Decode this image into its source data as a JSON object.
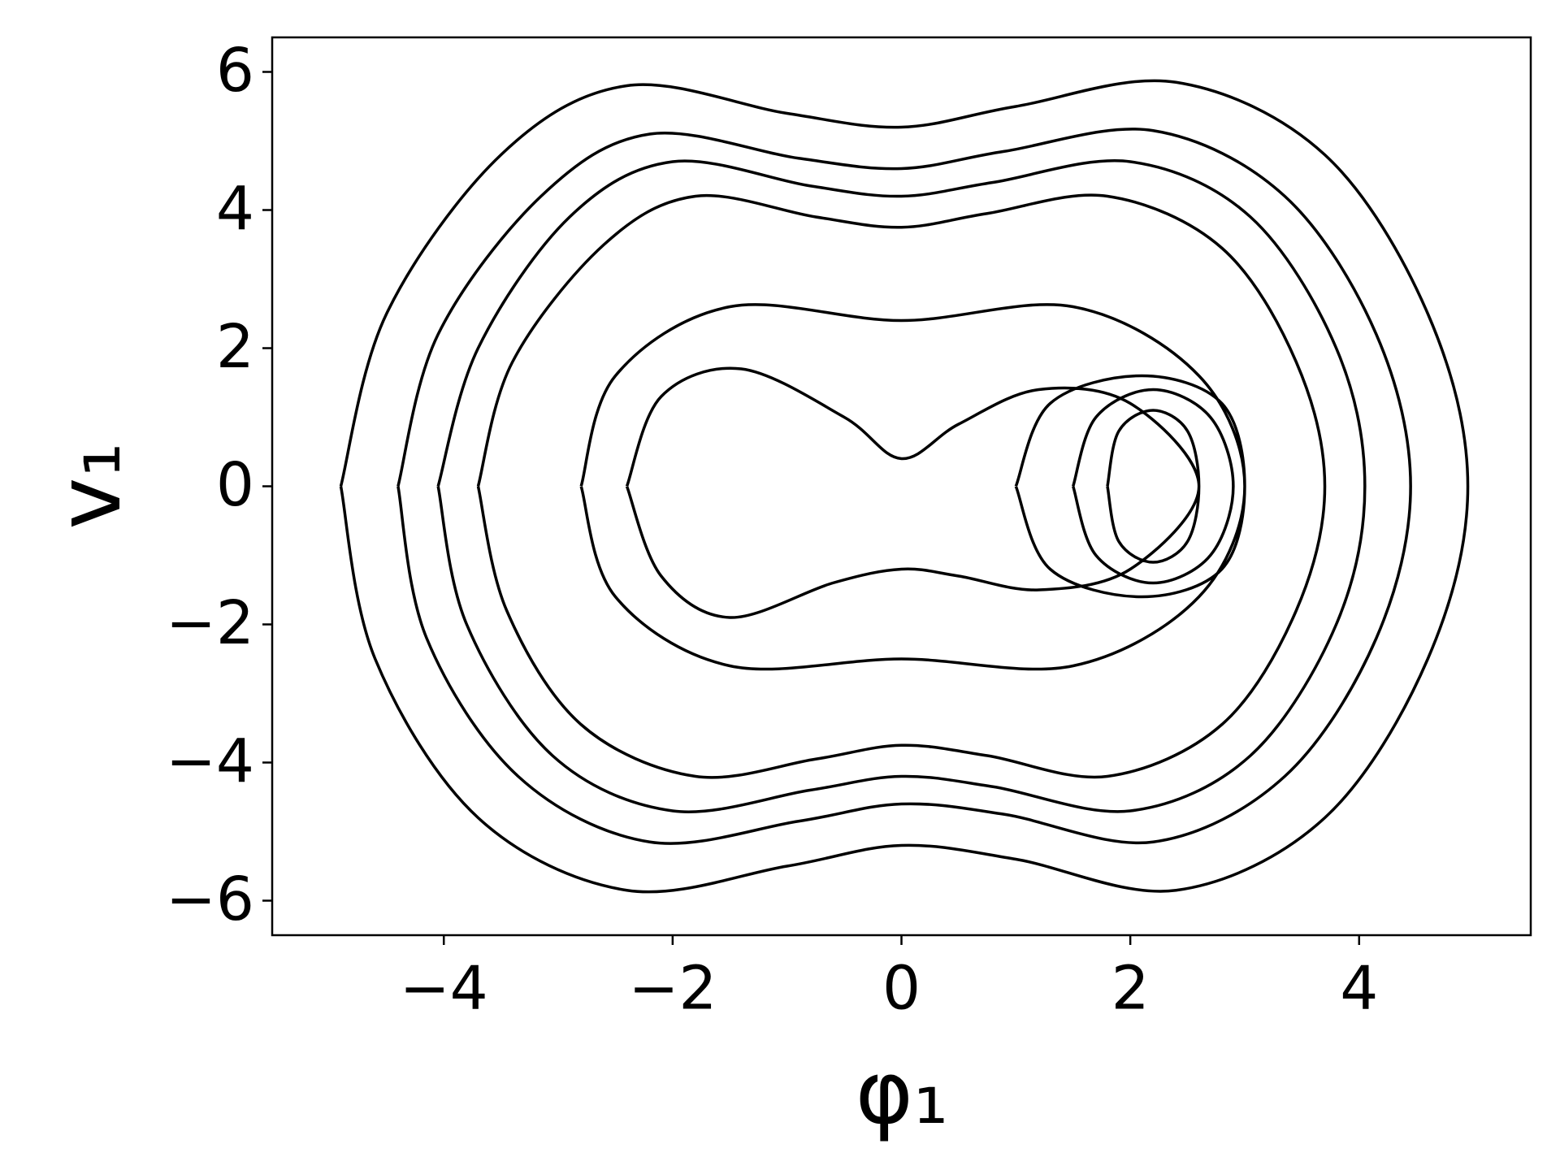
{
  "chart_data": {
    "type": "line",
    "xlabel": "φ₁",
    "ylabel": "v₁",
    "color": "#000000",
    "xlim": [
      -5.5,
      5.5
    ],
    "ylim": [
      -6.5,
      6.5
    ],
    "xticks": [
      {
        "value": -4,
        "label": "−4"
      },
      {
        "value": -2,
        "label": "−2"
      },
      0,
      2,
      4
    ],
    "yticks": [
      {
        "value": -6,
        "label": "−6"
      },
      {
        "value": -4,
        "label": "−4"
      },
      {
        "value": -2,
        "label": "−2"
      },
      0,
      2,
      4,
      6
    ],
    "x": [
      -4.9,
      -4.5,
      -3.5,
      -2.4,
      -1,
      0,
      1,
      2.4,
      3.7,
      4.6,
      4.95,
      4.6,
      3.7,
      2.4,
      1,
      0,
      -1,
      -2.4,
      -3.7,
      -4.6,
      -4.9,
      null,
      -4.4,
      -4.05,
      -3.15,
      -2.2,
      -0.9,
      0,
      0.9,
      2.2,
      3.35,
      4.15,
      4.45,
      4.15,
      3.35,
      2.2,
      0.9,
      0,
      -0.9,
      -2.2,
      -3.35,
      -4.15,
      -4.4,
      null,
      -4.05,
      -3.7,
      -2.9,
      -2.0,
      -0.8,
      0,
      0.8,
      2.0,
      3.05,
      3.8,
      4.05,
      3.8,
      3.05,
      2.0,
      0.8,
      0,
      -0.8,
      -2.0,
      -3.05,
      -3.8,
      -4.05,
      null,
      -3.7,
      -3.4,
      -2.6,
      -1.8,
      -0.75,
      0,
      0.75,
      1.8,
      2.8,
      3.45,
      3.7,
      3.45,
      2.8,
      1.8,
      0.75,
      0,
      -0.75,
      -1.8,
      -2.8,
      -3.45,
      -3.7,
      null,
      -2.8,
      -2.5,
      -1.5,
      0,
      1.5,
      2.6,
      3.0,
      2.6,
      1.5,
      0,
      -1.5,
      -2.5,
      -2.8,
      null,
      -2.4,
      -2.1,
      -1.4,
      -0.5,
      0,
      0.5,
      1.2,
      2.0,
      2.6,
      2.0,
      1.2,
      0.5,
      0,
      -0.6,
      -1.5,
      -2.1,
      -2.4,
      null,
      1.0,
      1.3,
      2.1,
      2.8,
      3.0,
      2.8,
      2.1,
      1.3,
      1.0,
      null,
      1.5,
      1.7,
      2.2,
      2.7,
      2.9,
      2.7,
      2.2,
      1.7,
      1.5,
      null,
      1.8,
      1.9,
      2.2,
      2.5,
      2.6,
      2.5,
      2.2,
      1.9,
      1.8
    ],
    "values": [
      0,
      2.5,
      4.8,
      5.8,
      5.4,
      5.2,
      5.5,
      5.85,
      4.8,
      2.5,
      0,
      -2.5,
      -4.8,
      -5.85,
      -5.4,
      -5.2,
      -5.5,
      -5.85,
      -4.8,
      -2.5,
      0,
      null,
      0,
      2.2,
      4.2,
      5.1,
      4.75,
      4.6,
      4.85,
      5.15,
      4.2,
      2.2,
      0,
      -2.2,
      -4.2,
      -5.15,
      -4.75,
      -4.6,
      -4.85,
      -5.15,
      -4.2,
      -2.2,
      0,
      null,
      0,
      2.0,
      3.9,
      4.7,
      4.35,
      4.2,
      4.4,
      4.7,
      3.9,
      2.0,
      0,
      -2.0,
      -3.9,
      -4.7,
      -4.35,
      -4.2,
      -4.4,
      -4.7,
      -3.9,
      -2.0,
      0,
      null,
      0,
      1.8,
      3.5,
      4.2,
      3.9,
      3.75,
      3.95,
      4.2,
      3.45,
      1.8,
      0,
      -1.8,
      -3.45,
      -4.2,
      -3.9,
      -3.75,
      -3.95,
      -4.2,
      -3.45,
      -1.8,
      0,
      null,
      0,
      1.6,
      2.6,
      2.4,
      2.6,
      1.6,
      0,
      -1.6,
      -2.6,
      -2.5,
      -2.6,
      -1.6,
      0,
      null,
      0,
      1.3,
      1.7,
      1.0,
      0.4,
      0.9,
      1.4,
      1.2,
      0,
      -1.2,
      -1.5,
      -1.3,
      -1.2,
      -1.4,
      -1.9,
      -1.3,
      0,
      null,
      0,
      1.2,
      1.6,
      1.2,
      0,
      -1.2,
      -1.6,
      -1.2,
      0,
      null,
      0,
      1.0,
      1.4,
      1.0,
      0,
      -1.0,
      -1.4,
      -1.0,
      0,
      null,
      0,
      0.8,
      1.1,
      0.8,
      0,
      -0.8,
      -1.1,
      -0.8,
      0
    ]
  }
}
